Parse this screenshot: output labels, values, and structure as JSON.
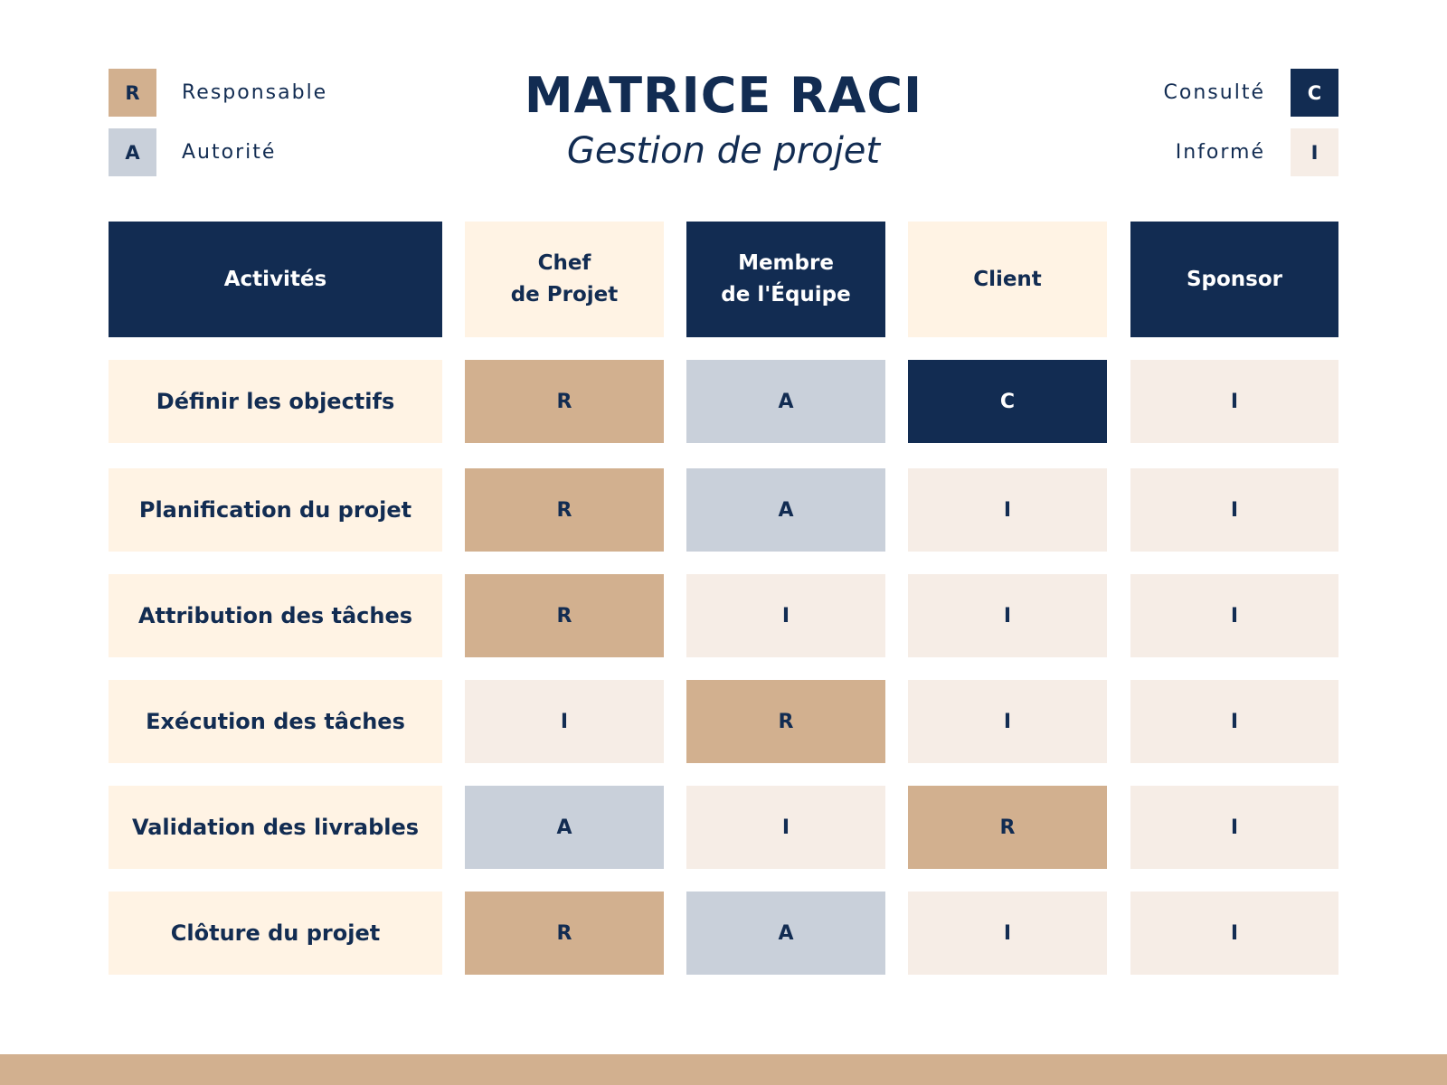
{
  "colors": {
    "navy": "#122c52",
    "tan": "#d2b08f",
    "slate": "#c9d0da",
    "cream": "#fff3e4",
    "blush": "#f6ede6"
  },
  "legend": {
    "left": [
      {
        "code": "R",
        "label": "Responsable"
      },
      {
        "code": "A",
        "label": "Autorité"
      }
    ],
    "right": [
      {
        "code": "C",
        "label": "Consulté"
      },
      {
        "code": "I",
        "label": "Informé"
      }
    ]
  },
  "title": "MATRICE RACI",
  "subtitle": "Gestion de projet",
  "table": {
    "headers": [
      "Activités",
      "Chef\nde Projet",
      "Membre\nde l'Équipe",
      "Client",
      "Sponsor"
    ],
    "rows": [
      {
        "activity": "Définir les objectifs",
        "values": [
          "R",
          "A",
          "C",
          "I"
        ]
      },
      {
        "activity": "Planification du projet",
        "values": [
          "R",
          "A",
          "I",
          "I"
        ]
      },
      {
        "activity": "Attribution des tâches",
        "values": [
          "R",
          "I",
          "I",
          "I"
        ]
      },
      {
        "activity": "Exécution des tâches",
        "values": [
          "I",
          "R",
          "I",
          "I"
        ]
      },
      {
        "activity": "Validation des livrables",
        "values": [
          "A",
          "I",
          "R",
          "I"
        ]
      },
      {
        "activity": "Clôture du projet",
        "values": [
          "R",
          "A",
          "I",
          "I"
        ]
      }
    ]
  }
}
